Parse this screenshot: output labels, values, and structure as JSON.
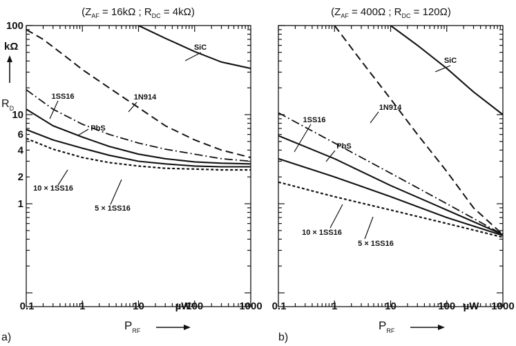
{
  "chart_data": [
    {
      "type": "line",
      "panel_label": "a)",
      "title_parts": {
        "open": "(Z",
        "sub1": "AF",
        "mid": " = 16kΩ ; R",
        "sub2": "DC",
        "close": " = 4kΩ)"
      },
      "xlabel": {
        "main": "P",
        "sub": "RF",
        "unit": "µW"
      },
      "ylabel": {
        "unit": "kΩ",
        "main": "R",
        "sub": "D"
      },
      "x_scale": "log",
      "y_scale": "log",
      "xlim": [
        0.1,
        1000
      ],
      "ylim": [
        0.07,
        100
      ],
      "x_ticks": [
        "0.1",
        "1",
        "10",
        "100",
        "1000"
      ],
      "y_ticks": [
        "1",
        "2",
        "4",
        "6",
        "10",
        "100"
      ],
      "series": [
        {
          "name": "SiC",
          "style": "solid",
          "x": [
            10,
            30,
            100,
            300,
            1000
          ],
          "y": [
            100,
            72,
            51,
            39,
            33
          ]
        },
        {
          "name": "1N914",
          "style": "dashed",
          "x": [
            0.1,
            0.2,
            0.5,
            1,
            3,
            10,
            30,
            100,
            300,
            1000
          ],
          "y": [
            90,
            70,
            45,
            32,
            20,
            12,
            7.5,
            5.2,
            4.0,
            3.3
          ]
        },
        {
          "name": "PbS",
          "style": "dashdot",
          "x": [
            0.1,
            0.3,
            1,
            3,
            10,
            30,
            100,
            300,
            1000
          ],
          "y": [
            19,
            11.5,
            7.8,
            6.0,
            4.8,
            4.1,
            3.6,
            3.2,
            3.0
          ]
        },
        {
          "name": "1SS16",
          "style": "solid",
          "x": [
            0.1,
            0.3,
            1,
            3,
            10,
            30,
            100,
            300,
            1000
          ],
          "y": [
            11.5,
            7.5,
            5.6,
            4.4,
            3.6,
            3.2,
            2.95,
            2.85,
            2.8
          ]
        },
        {
          "name": "5 × 1SS16",
          "style": "solid",
          "x": [
            0.1,
            0.3,
            1,
            3,
            10,
            30,
            100,
            300,
            1000
          ],
          "y": [
            6.8,
            5.2,
            4.2,
            3.5,
            3.0,
            2.8,
            2.65,
            2.6,
            2.6
          ]
        },
        {
          "name": "10 × 1SS16",
          "style": "dotted",
          "x": [
            0.1,
            0.3,
            1,
            3,
            10,
            30,
            100,
            300,
            1000
          ],
          "y": [
            5.4,
            4.1,
            3.3,
            2.9,
            2.65,
            2.5,
            2.45,
            2.4,
            2.4
          ]
        }
      ]
    },
    {
      "type": "line",
      "panel_label": "b)",
      "title_parts": {
        "open": "(Z",
        "sub1": "AF",
        "mid": " = 400Ω ; R",
        "sub2": "DC",
        "close": " = 120Ω)"
      },
      "xlabel": {
        "main": "P",
        "sub": "RF",
        "unit": "µW"
      },
      "x_scale": "log",
      "y_scale": "log",
      "xlim": [
        0.1,
        1000
      ],
      "ylim": [
        0.07,
        100
      ],
      "x_ticks": [
        "0.1",
        "1",
        "10",
        "100",
        "1000"
      ],
      "series": [
        {
          "name": "SiC",
          "style": "solid",
          "x": [
            10,
            30,
            100,
            300,
            1000
          ],
          "y": [
            100,
            60,
            33,
            18,
            10
          ]
        },
        {
          "name": "1N914",
          "style": "dashed",
          "x": [
            1,
            3,
            10,
            30,
            100,
            300,
            1000
          ],
          "y": [
            100,
            40,
            15,
            6,
            2.3,
            0.9,
            0.45
          ]
        },
        {
          "name": "PbS",
          "style": "dashdot",
          "x": [
            0.1,
            1,
            10,
            100,
            1000
          ],
          "y": [
            10.5,
            4.8,
            2.2,
            1.0,
            0.45
          ]
        },
        {
          "name": "1SS16",
          "style": "solid",
          "x": [
            0.1,
            1,
            10,
            100,
            1000
          ],
          "y": [
            5.8,
            3.2,
            1.6,
            0.85,
            0.45
          ]
        },
        {
          "name": "5 × 1SS16",
          "style": "solid",
          "x": [
            0.1,
            1,
            10,
            100,
            1000
          ],
          "y": [
            3.2,
            2.0,
            1.2,
            0.7,
            0.44
          ]
        },
        {
          "name": "10 × 1SS16",
          "style": "dotted",
          "x": [
            0.1,
            1,
            10,
            100,
            1000
          ],
          "y": [
            1.75,
            1.2,
            0.85,
            0.6,
            0.42
          ]
        }
      ]
    }
  ]
}
